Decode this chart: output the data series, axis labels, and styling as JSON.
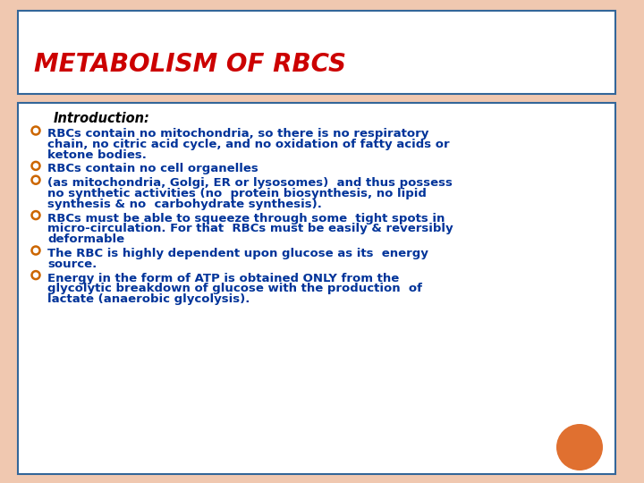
{
  "title": "METABOLISM OF RBCS",
  "title_color": "#cc0000",
  "title_bg": "#ffffff",
  "title_border_color": "#336699",
  "content_bg": "#ffffff",
  "content_border_color": "#336699",
  "page_bg": "#f0c8b0",
  "intro_label": "Introduction:",
  "bullet_color": "#003399",
  "bullet_marker_color": "#cc6600",
  "bullet_points": [
    "RBCs contain no mitochondria, so there is no respiratory\nchain, no citric acid cycle, and no oxidation of fatty acids or\nketone bodies.",
    "RBCs contain no cell organelles",
    "(as mitochondria, Golgi, ER or lysosomes)  and thus possess\nno synthetic activities (no  protein biosynthesis, no lipid\nsynthesis & no  carbohydrate synthesis).",
    "RBCs must be able to squeeze through some  tight spots in\nmicro-circulation. For that  RBCs must be easily & reversibly\ndeformable",
    "The RBC is highly dependent upon glucose as its  energy\nsource.",
    "Energy in the form of ATP is obtained ONLY from the\nglycolytic breakdown of glucose with the production  of\nlactate (anaerobic glycolysis)."
  ],
  "orange_circle_color": "#e07030",
  "font_size_title": 20,
  "font_size_intro": 10.5,
  "font_size_bullets": 9.5
}
